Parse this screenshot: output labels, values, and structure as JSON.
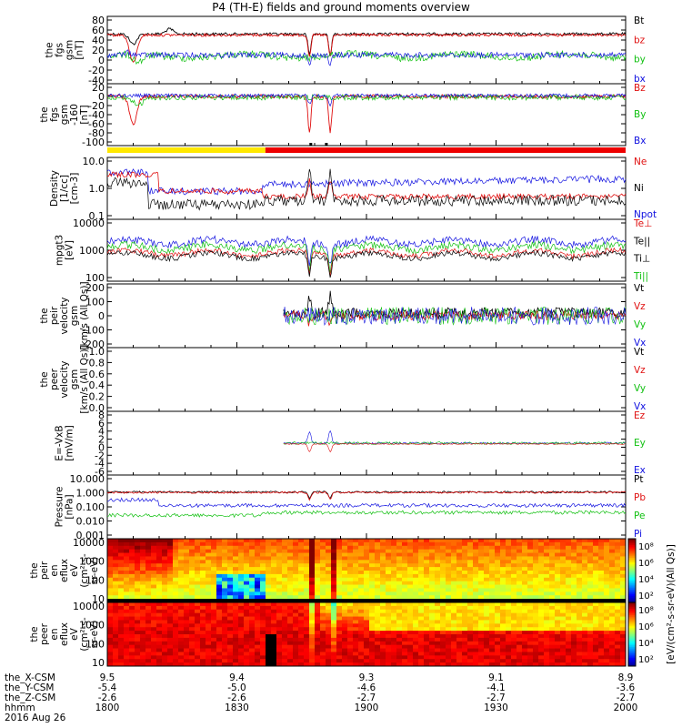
{
  "title": "P4 (TH-E) fields and ground moments overview",
  "colors": {
    "black": "#000000",
    "red": "#e01010",
    "green": "#10c010",
    "blue": "#1010e0",
    "yellow": "#ffe800",
    "bar_red": "#ee0000"
  },
  "time_axis": {
    "rows": [
      {
        "label": "the_X-CSM",
        "values": [
          "9.5",
          "9.4",
          "9.3",
          "9.1",
          "8.9"
        ]
      },
      {
        "label": "the_Y-CSM",
        "values": [
          "-5.4",
          "-5.0",
          "-4.6",
          "-4.1",
          "-3.6"
        ]
      },
      {
        "label": "the_Z-CSM",
        "values": [
          "-2.6",
          "-2.6",
          "-2.7",
          "-2.7",
          "-2.7"
        ]
      },
      {
        "label": "hhmm",
        "values": [
          "1800",
          "1830",
          "1900",
          "1930",
          "2000"
        ]
      }
    ],
    "date": "2016 Aug 26"
  },
  "chart_data": [
    {
      "type": "line",
      "ylabel": [
        "the",
        "fgs",
        "gsm",
        "[nT]"
      ],
      "ticks": [
        "80",
        "60",
        "40",
        "20",
        "0",
        "-20",
        "-40"
      ],
      "legend": [
        {
          "label": "Bt",
          "color": "#000000"
        },
        {
          "label": "bz",
          "color": "#e01010"
        },
        {
          "label": "by",
          "color": "#10c010"
        },
        {
          "label": "bx",
          "color": "#1010e0"
        }
      ]
    },
    {
      "type": "line",
      "ylabel": [
        "the",
        "fgs",
        "gsm",
        "-160",
        "[nT]"
      ],
      "ticks": [
        "20",
        "0",
        "-20",
        "-40",
        "-60",
        "-80",
        "-100"
      ],
      "legend": [
        {
          "label": "Bz",
          "color": "#e01010"
        },
        {
          "label": "By",
          "color": "#10c010"
        },
        {
          "label": "Bx",
          "color": "#1010e0"
        }
      ]
    },
    {
      "type": "line",
      "ylabel": [
        "Density",
        "[1/cc]",
        "[cm-3]"
      ],
      "ticks": [
        "10.0",
        "1.0",
        "0.1"
      ],
      "legend": [
        {
          "label": "Ne",
          "color": "#e01010"
        },
        {
          "label": "Ni",
          "color": "#000000"
        },
        {
          "label": "Npot",
          "color": "#1010e0"
        }
      ]
    },
    {
      "type": "line",
      "ylabel": [
        "mpgt3",
        "[eV]"
      ],
      "ticks": [
        "10000",
        "1000",
        "100"
      ],
      "legend": [
        {
          "label": "Te⊥",
          "color": "#e01010"
        },
        {
          "label": "Te||",
          "color": "#000000"
        },
        {
          "label": "Ti⊥",
          "color": "#000000"
        },
        {
          "label": "Ti||",
          "color": "#10c010"
        }
      ]
    },
    {
      "type": "line",
      "ylabel": [
        "the",
        "peir",
        "velocity",
        "gsm",
        "[km/s (All Qs)]"
      ],
      "ticks": [
        "200",
        "100",
        "0",
        "-100",
        "-200"
      ],
      "legend": [
        {
          "label": "Vt",
          "color": "#000000"
        },
        {
          "label": "Vz",
          "color": "#e01010"
        },
        {
          "label": "Vy",
          "color": "#10c010"
        },
        {
          "label": "Vx",
          "color": "#1010e0"
        }
      ]
    },
    {
      "type": "line",
      "ylabel": [
        "the",
        "peer",
        "velocity",
        "gsm",
        "[km/s (All Qs)]"
      ],
      "ticks": [
        "1.0",
        "0.8",
        "0.6",
        "0.4",
        "0.2",
        "0.0"
      ],
      "legend": [
        {
          "label": "Vt",
          "color": "#000000"
        },
        {
          "label": "Vz",
          "color": "#e01010"
        },
        {
          "label": "Vy",
          "color": "#10c010"
        },
        {
          "label": "Vx",
          "color": "#1010e0"
        }
      ]
    },
    {
      "type": "line",
      "ylabel": [
        "E=-VxB",
        "[mV/m]"
      ],
      "ticks": [
        "8",
        "6",
        "4",
        "2",
        "0",
        "-2",
        "-4",
        "-6"
      ],
      "legend": [
        {
          "label": "Ez",
          "color": "#e01010"
        },
        {
          "label": "Ey",
          "color": "#10c010"
        },
        {
          "label": "Ex",
          "color": "#1010e0"
        }
      ]
    },
    {
      "type": "line",
      "ylabel": [
        "Pressure",
        "[nPa]"
      ],
      "ticks": [
        "10.000",
        "1.000",
        "0.100",
        "0.010",
        "0.001"
      ],
      "legend": [
        {
          "label": "Pt",
          "color": "#000000"
        },
        {
          "label": "Pb",
          "color": "#e01010"
        },
        {
          "label": "Pe",
          "color": "#10c010"
        },
        {
          "label": "Pi",
          "color": "#1010e0"
        }
      ]
    },
    {
      "type": "heatmap",
      "ylabel": [
        "the",
        "peir",
        "en",
        "eflux",
        "eV",
        "(cm²-s-",
        "sr-eV)"
      ],
      "ticks": [
        "10000",
        "1000",
        "100",
        "10"
      ]
    },
    {
      "type": "heatmap",
      "ylabel": [
        "the",
        "peer",
        "en",
        "eflux",
        "eV",
        "(cm²-s-",
        "sr-eV)"
      ],
      "ticks": [
        "10000",
        "1000",
        "100",
        "10"
      ]
    }
  ],
  "colorbar": {
    "label": "[eV/(cm²-s-sr-eV)(All Qs)]",
    "top_ticks": [
      "10⁸",
      "10⁶",
      "10⁴",
      "10²"
    ],
    "bottom_ticks": [
      "10⁸",
      "10⁶",
      "10⁴",
      "10²"
    ]
  }
}
